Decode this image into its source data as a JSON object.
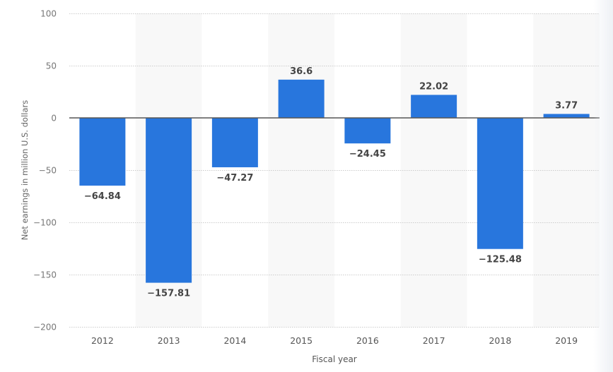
{
  "chart_data": {
    "type": "bar",
    "title": "",
    "xlabel": "Fiscal year",
    "ylabel": "Net earnings in million U.S. dollars",
    "categories": [
      "2012",
      "2013",
      "2014",
      "2015",
      "2016",
      "2017",
      "2018",
      "2019"
    ],
    "values": [
      -64.84,
      -157.81,
      -47.27,
      36.6,
      -24.45,
      22.02,
      -125.48,
      3.77
    ],
    "value_labels": [
      "-64.84",
      "-157.81",
      "-47.27",
      "36.6",
      "-24.45",
      "22.02",
      "-125.48",
      "3.77"
    ],
    "ylim": [
      -200,
      100
    ],
    "yticks": [
      100,
      50,
      0,
      -50,
      -100,
      -150,
      -200
    ],
    "ytick_labels": [
      "100",
      "50",
      "0",
      "-50",
      "-100",
      "-150",
      "-200"
    ],
    "grid": true,
    "legend": null,
    "colors": {
      "bar": "#2876dd",
      "band": "#f8f8f8",
      "grid": "#cccccc",
      "zero_line": "#555555",
      "tick_text": "#777777",
      "value_text": "#444444"
    }
  }
}
